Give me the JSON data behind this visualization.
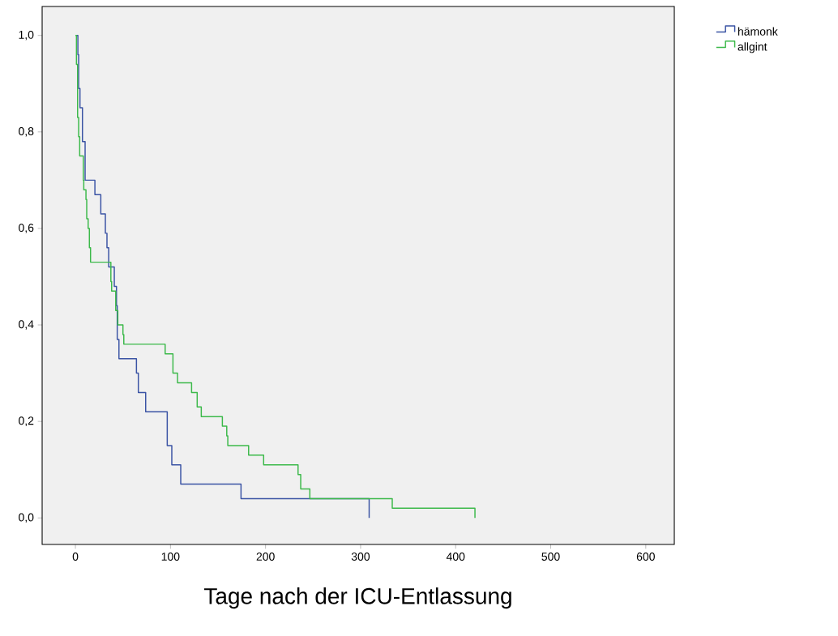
{
  "chart_data": {
    "type": "step",
    "xlabel": "Tage nach der ICU-Entlassung",
    "xlim": [
      -35,
      630
    ],
    "ylim": [
      -0.055,
      1.06
    ],
    "xticks": [
      0,
      100,
      200,
      300,
      400,
      500,
      600
    ],
    "yticks": [
      {
        "value": 0,
        "label": "0,0"
      },
      {
        "value": 0.2,
        "label": "0,2"
      },
      {
        "value": 0.4,
        "label": "0,4"
      },
      {
        "value": 0.6,
        "label": "0,6"
      },
      {
        "value": 0.8,
        "label": "0,8"
      },
      {
        "value": 1.0,
        "label": "1,0"
      }
    ],
    "legend": "top right",
    "grid": false,
    "marker": "none",
    "line_style": "solid",
    "series": [
      {
        "name": "hämonk",
        "color": "#3a53a4",
        "x": [
          1,
          2.6,
          3.4,
          4.8,
          7.4,
          10.2,
          20.5,
          26.7,
          31.5,
          33.2,
          35,
          40.9,
          43.2,
          44,
          45.8,
          64.2,
          66.2,
          73.9,
          96.6,
          101.4,
          110.8,
          174.2,
          309
        ],
        "values": [
          1.0,
          0.96,
          0.89,
          0.85,
          0.78,
          0.7,
          0.67,
          0.63,
          0.59,
          0.56,
          0.52,
          0.48,
          0.44,
          0.37,
          0.33,
          0.3,
          0.26,
          0.22,
          0.15,
          0.11,
          0.07,
          0.04,
          0
        ]
      },
      {
        "name": "allgint",
        "color": "#3cb94a",
        "x": [
          0,
          1.1,
          2.3,
          3.4,
          4.5,
          8.3,
          8.8,
          11.1,
          11.9,
          13.4,
          14.7,
          15.9,
          37.3,
          38.1,
          42.4,
          44.6,
          50,
          50.9,
          94.4,
          102.6,
          107.4,
          122.2,
          128.1,
          132.4,
          154.6,
          159.2,
          160.3,
          182.2,
          198,
          234.2,
          237,
          246.6,
          333.3,
          420.3
        ],
        "values": [
          1.0,
          0.94,
          0.83,
          0.79,
          0.75,
          0.7,
          0.68,
          0.66,
          0.62,
          0.6,
          0.56,
          0.53,
          0.49,
          0.47,
          0.43,
          0.4,
          0.38,
          0.36,
          0.34,
          0.3,
          0.28,
          0.26,
          0.23,
          0.21,
          0.19,
          0.17,
          0.15,
          0.13,
          0.11,
          0.09,
          0.06,
          0.04,
          0.02,
          0
        ]
      }
    ]
  }
}
